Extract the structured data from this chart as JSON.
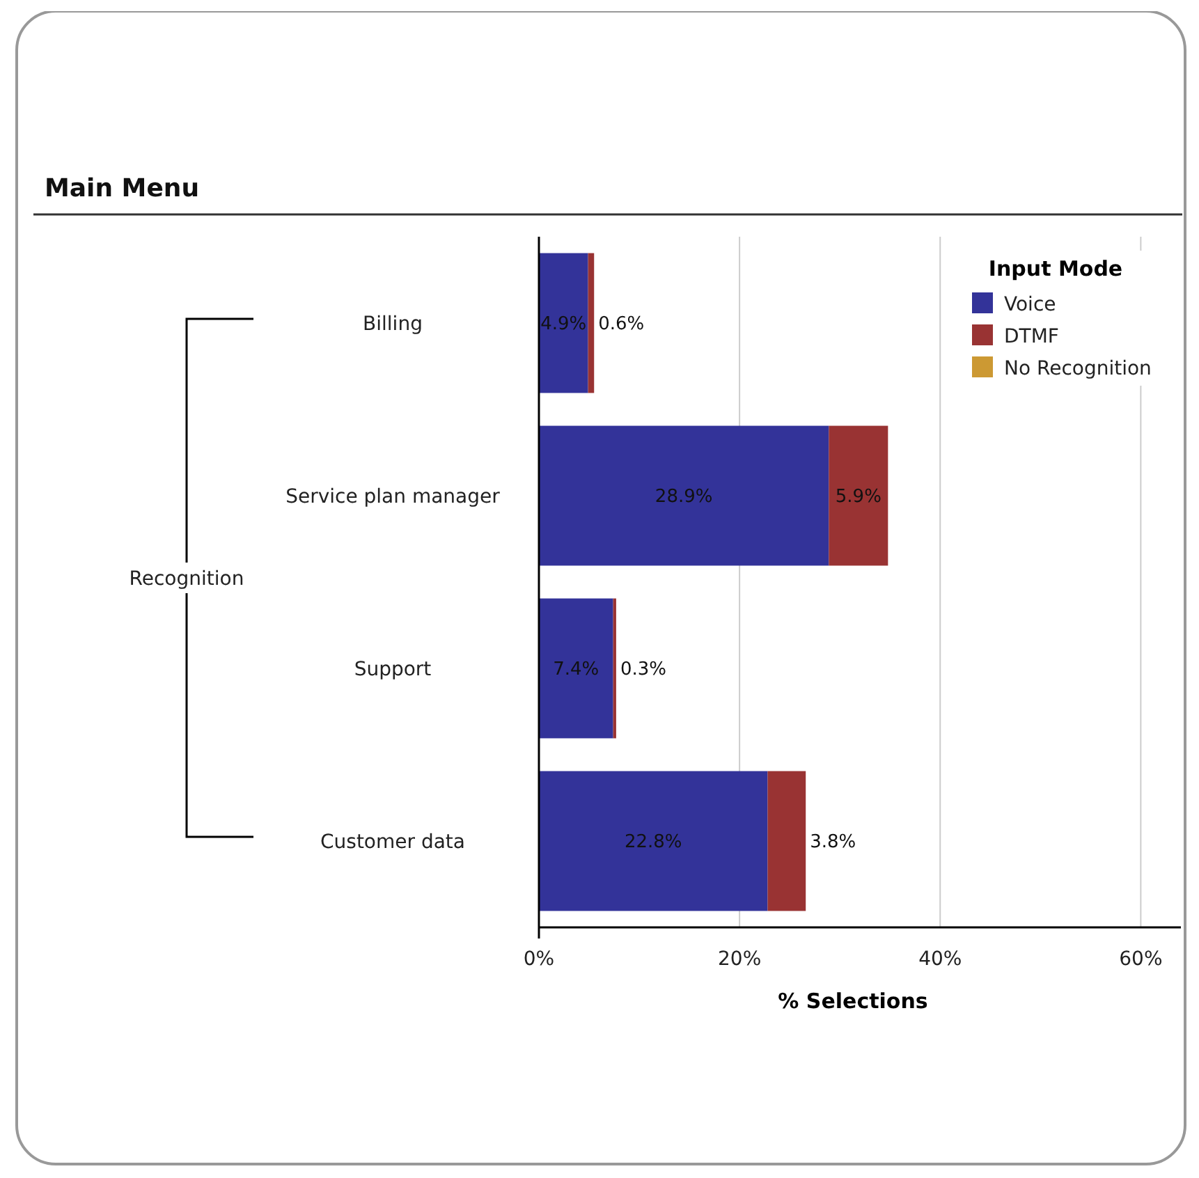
{
  "chart_data": {
    "type": "bar",
    "orientation": "horizontal",
    "stacked": true,
    "title": "Main Menu",
    "xlabel": "% Selections",
    "legend_title": "Input Mode",
    "annotations": [
      "Recognition"
    ],
    "categories": [
      "Billing",
      "Service plan manager",
      "Support",
      "Customer data"
    ],
    "series": [
      {
        "name": "Voice",
        "color": "#333399",
        "values": [
          4.9,
          28.9,
          7.4,
          22.8
        ],
        "value_labels": [
          "4.9%",
          "28.9%",
          "7.4%",
          "22.8%"
        ]
      },
      {
        "name": "DTMF",
        "color": "#993333",
        "values": [
          0.6,
          5.9,
          0.3,
          3.8
        ],
        "value_labels": [
          "0.6%",
          "5.9%",
          "0.3%",
          "3.8%"
        ]
      },
      {
        "name": "No Recognition",
        "color": "#cc9933",
        "values": [
          null,
          null,
          null,
          null
        ]
      }
    ],
    "xlim": [
      0,
      64
    ],
    "xticks": [
      {
        "value": 0,
        "label": "0%"
      },
      {
        "value": 20,
        "label": "20%"
      },
      {
        "value": 40,
        "label": "40%"
      },
      {
        "value": 60,
        "label": "60%"
      }
    ],
    "grid": "x",
    "legend": "top right"
  }
}
